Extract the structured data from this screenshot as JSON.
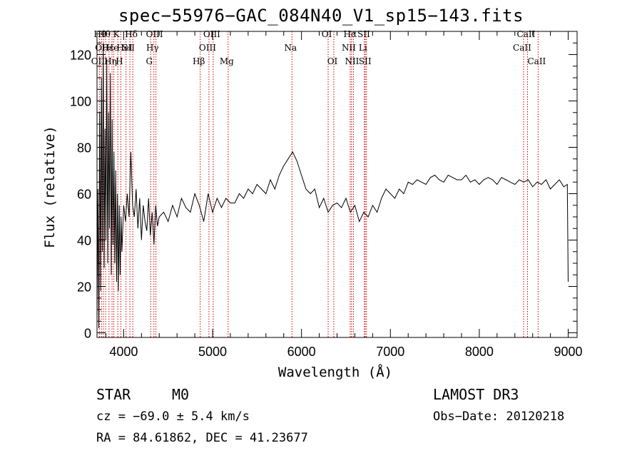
{
  "chart_data": {
    "type": "line",
    "title": "spec−55976−GAC_084N40_V1_sp15−143.fits",
    "xlabel": "Wavelength (Å)",
    "ylabel": "Flux (relative)",
    "xlim": [
      3700,
      9100
    ],
    "ylim": [
      -2,
      130
    ],
    "xticks": [
      4000,
      5000,
      6000,
      7000,
      8000,
      9000
    ],
    "yticks": [
      0,
      20,
      40,
      60,
      80,
      100,
      120
    ],
    "series": [
      {
        "name": "flux",
        "x": [
          3700,
          3710,
          3720,
          3730,
          3740,
          3750,
          3760,
          3770,
          3780,
          3790,
          3800,
          3810,
          3820,
          3830,
          3840,
          3850,
          3860,
          3870,
          3880,
          3890,
          3900,
          3910,
          3920,
          3930,
          3940,
          3950,
          3960,
          3970,
          3980,
          3990,
          4000,
          4020,
          4040,
          4060,
          4080,
          4100,
          4120,
          4140,
          4160,
          4180,
          4200,
          4220,
          4240,
          4260,
          4280,
          4300,
          4320,
          4340,
          4360,
          4380,
          4400,
          4450,
          4500,
          4550,
          4600,
          4650,
          4700,
          4750,
          4800,
          4850,
          4900,
          4950,
          5000,
          5050,
          5100,
          5150,
          5200,
          5250,
          5300,
          5350,
          5400,
          5450,
          5500,
          5550,
          5600,
          5650,
          5700,
          5750,
          5800,
          5850,
          5900,
          5950,
          6000,
          6050,
          6100,
          6150,
          6200,
          6250,
          6300,
          6350,
          6400,
          6450,
          6500,
          6550,
          6600,
          6650,
          6700,
          6750,
          6800,
          6850,
          6900,
          6950,
          7000,
          7050,
          7100,
          7150,
          7200,
          7250,
          7300,
          7350,
          7400,
          7450,
          7500,
          7550,
          7600,
          7650,
          7700,
          7750,
          7800,
          7850,
          7900,
          7950,
          8000,
          8050,
          8100,
          8150,
          8200,
          8250,
          8300,
          8350,
          8400,
          8450,
          8500,
          8550,
          8600,
          8650,
          8700,
          8750,
          8800,
          8850,
          8900,
          8950,
          8990,
          9000
        ],
        "y": [
          5,
          62,
          2,
          95,
          18,
          110,
          35,
          125,
          28,
          88,
          40,
          118,
          30,
          95,
          45,
          112,
          25,
          92,
          38,
          78,
          30,
          70,
          22,
          60,
          18,
          55,
          25,
          50,
          35,
          45,
          55,
          48,
          60,
          50,
          78,
          55,
          50,
          62,
          45,
          58,
          40,
          55,
          48,
          44,
          58,
          42,
          52,
          38,
          55,
          46,
          50,
          52,
          48,
          55,
          50,
          58,
          54,
          52,
          60,
          55,
          48,
          60,
          52,
          58,
          54,
          58,
          56,
          56,
          60,
          58,
          62,
          60,
          64,
          62,
          60,
          66,
          62,
          68,
          72,
          75,
          78,
          74,
          68,
          62,
          60,
          62,
          54,
          58,
          52,
          55,
          56,
          54,
          58,
          52,
          55,
          48,
          52,
          50,
          55,
          52,
          58,
          62,
          60,
          58,
          62,
          60,
          65,
          64,
          66,
          65,
          64,
          67,
          68,
          66,
          65,
          68,
          67,
          66,
          66,
          68,
          65,
          66,
          64,
          66,
          67,
          66,
          64,
          67,
          66,
          65,
          64,
          66,
          65,
          66,
          63,
          65,
          64,
          66,
          62,
          64,
          66,
          63,
          64,
          22
        ]
      }
    ],
    "lines": [
      {
        "x": 3727,
        "label": "OII",
        "row": 3
      },
      {
        "x": 3750,
        "label": "Hθ",
        "row": 1
      },
      {
        "x": 3772,
        "label": "OII",
        "row": 2
      },
      {
        "x": 3797,
        "label": "Hθ",
        "row": 1
      },
      {
        "x": 3835,
        "label": "Hε",
        "row": 2
      },
      {
        "x": 3869,
        "label": "Hη",
        "row": 3
      },
      {
        "x": 3889,
        "label": "He",
        "row": 2
      },
      {
        "x": 3934,
        "label": "K",
        "row": 1
      },
      {
        "x": 3968,
        "label": "H",
        "row": 3
      },
      {
        "x": 4026,
        "label": "HeI",
        "row": 2
      },
      {
        "x": 4070,
        "label": "SII",
        "row": 2
      },
      {
        "x": 4102,
        "label": "Hδ",
        "row": 1
      },
      {
        "x": 4304,
        "label": "G",
        "row": 3
      },
      {
        "x": 4340,
        "label": "Hγ",
        "row": 2
      },
      {
        "x": 4363,
        "label": "OIII",
        "row": 1
      },
      {
        "x": 4861,
        "label": "Hβ",
        "row": 3
      },
      {
        "x": 4959,
        "label": "OIII",
        "row": 2
      },
      {
        "x": 5007,
        "label": "OIII",
        "row": 1
      },
      {
        "x": 5175,
        "label": "Mg",
        "row": 3
      },
      {
        "x": 5893,
        "label": "Na",
        "row": 2
      },
      {
        "x": 6300,
        "label": "OI",
        "row": 1
      },
      {
        "x": 6364,
        "label": "OI",
        "row": 3
      },
      {
        "x": 6548,
        "label": "NII",
        "row": 2
      },
      {
        "x": 6563,
        "label": "Hα",
        "row": 1
      },
      {
        "x": 6584,
        "label": "NII",
        "row": 3
      },
      {
        "x": 6707,
        "label": "Li",
        "row": 2
      },
      {
        "x": 6717,
        "label": "SII",
        "row": 1
      },
      {
        "x": 6731,
        "label": "SII",
        "row": 3
      },
      {
        "x": 8498,
        "label": "CaII",
        "row": 2
      },
      {
        "x": 8542,
        "label": "CaII",
        "row": 1
      },
      {
        "x": 8662,
        "label": "CaII",
        "row": 3
      }
    ],
    "line_color": "#cc0000"
  },
  "info": {
    "class": "STAR",
    "subclass": "M0",
    "survey": "LAMOST DR3",
    "cz": "cz = −69.0 ± 5.4 km/s",
    "obsdate": "Obs−Date: 20120218",
    "radec": "RA =  84.61862, DEC =  41.23677"
  }
}
